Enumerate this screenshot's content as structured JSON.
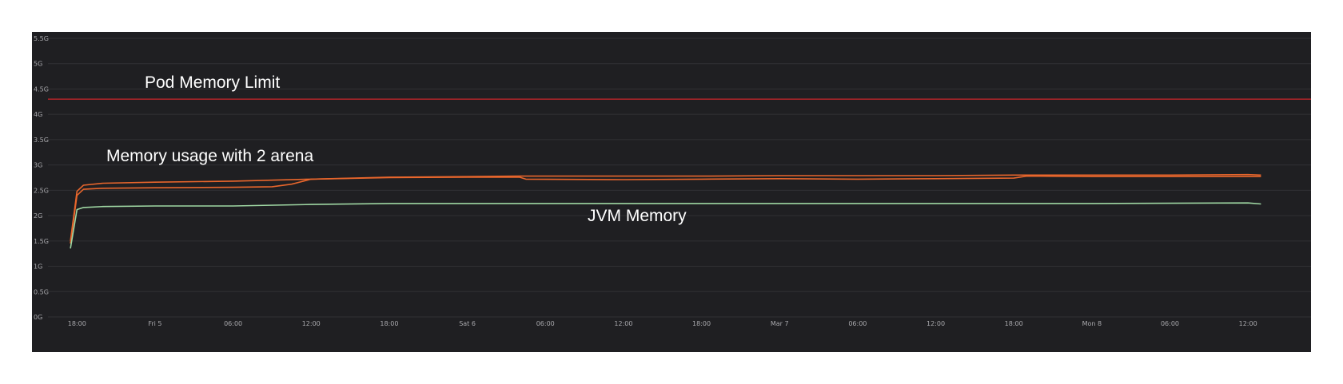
{
  "chart_data": {
    "type": "line",
    "title": "",
    "xlabel": "",
    "ylabel": "",
    "ylim": [
      0,
      5.5
    ],
    "y_unit": "G",
    "y_ticks": [
      {
        "value": 0,
        "label": "0G"
      },
      {
        "value": 0.5,
        "label": "0.5G"
      },
      {
        "value": 1,
        "label": "1G"
      },
      {
        "value": 1.5,
        "label": "1.5G"
      },
      {
        "value": 2,
        "label": "2G"
      },
      {
        "value": 2.5,
        "label": "2.5G"
      },
      {
        "value": 3,
        "label": "3G"
      },
      {
        "value": 3.5,
        "label": "3.5G"
      },
      {
        "value": 4,
        "label": "4G"
      },
      {
        "value": 4.5,
        "label": "4.5G"
      },
      {
        "value": 5,
        "label": "5G"
      },
      {
        "value": 5.5,
        "label": "5.5G"
      }
    ],
    "xlim": [
      "Thu 17:00",
      "Mon 15:00"
    ],
    "x_ticks": [
      {
        "t": "Thu 18:00",
        "label": "18:00"
      },
      {
        "t": "Fri 00:00",
        "label": "Fri 5"
      },
      {
        "t": "Fri 06:00",
        "label": "06:00"
      },
      {
        "t": "Fri 12:00",
        "label": "12:00"
      },
      {
        "t": "Fri 18:00",
        "label": "18:00"
      },
      {
        "t": "Sat 00:00",
        "label": "Sat 6"
      },
      {
        "t": "Sat 06:00",
        "label": "06:00"
      },
      {
        "t": "Sat 12:00",
        "label": "12:00"
      },
      {
        "t": "Sat 18:00",
        "label": "18:00"
      },
      {
        "t": "Sun 00:00",
        "label": "Mar 7"
      },
      {
        "t": "Sun 06:00",
        "label": "06:00"
      },
      {
        "t": "Sun 12:00",
        "label": "12:00"
      },
      {
        "t": "Sun 18:00",
        "label": "18:00"
      },
      {
        "t": "Mon 00:00",
        "label": "Mon 8"
      },
      {
        "t": "Mon 06:00",
        "label": "06:00"
      },
      {
        "t": "Mon 12:00",
        "label": "12:00"
      }
    ],
    "grid": true,
    "reference_lines": [
      {
        "label": "Pod Memory Limit",
        "value": 4.3,
        "color": "#c0262a"
      }
    ],
    "annotations": [
      {
        "text": "Pod Memory Limit"
      },
      {
        "text": "Memory usage with 2 arena"
      },
      {
        "text": "JVM Memory"
      }
    ],
    "series": [
      {
        "color": "#e8662c",
        "points": [
          [
            "Thu 17:30",
            1.5
          ],
          [
            "Thu 18:00",
            2.48
          ],
          [
            "Thu 18:30",
            2.6
          ],
          [
            "Thu 20:00",
            2.64
          ],
          [
            "Fri 00:00",
            2.66
          ],
          [
            "Fri 06:00",
            2.68
          ],
          [
            "Fri 12:00",
            2.72
          ],
          [
            "Fri 18:00",
            2.76
          ],
          [
            "Sat 00:00",
            2.77
          ],
          [
            "Sat 04:00",
            2.78
          ],
          [
            "Sat 12:00",
            2.78
          ],
          [
            "Sat 18:00",
            2.78
          ],
          [
            "Sun 00:00",
            2.79
          ],
          [
            "Sun 06:00",
            2.79
          ],
          [
            "Sun 12:00",
            2.79
          ],
          [
            "Sun 18:00",
            2.8
          ],
          [
            "Mon 00:00",
            2.8
          ],
          [
            "Mon 06:00",
            2.8
          ],
          [
            "Mon 12:00",
            2.81
          ],
          [
            "Mon 13:00",
            2.8
          ]
        ]
      },
      {
        "color": "#e8662c",
        "points": [
          [
            "Thu 17:30",
            1.45
          ],
          [
            "Thu 18:00",
            2.4
          ],
          [
            "Thu 18:30",
            2.52
          ],
          [
            "Thu 20:00",
            2.54
          ],
          [
            "Fri 00:00",
            2.55
          ],
          [
            "Fri 06:00",
            2.56
          ],
          [
            "Fri 09:00",
            2.57
          ],
          [
            "Fri 10:30",
            2.62
          ],
          [
            "Fri 12:00",
            2.72
          ],
          [
            "Fri 18:00",
            2.75
          ],
          [
            "Sat 00:00",
            2.76
          ],
          [
            "Sat 04:00",
            2.76
          ],
          [
            "Sat 04:30",
            2.72
          ],
          [
            "Sat 12:00",
            2.71
          ],
          [
            "Sat 18:00",
            2.72
          ],
          [
            "Sun 00:00",
            2.73
          ],
          [
            "Sun 06:00",
            2.72
          ],
          [
            "Sun 12:00",
            2.73
          ],
          [
            "Sun 18:00",
            2.74
          ],
          [
            "Sun 19:00",
            2.78
          ],
          [
            "Mon 00:00",
            2.77
          ],
          [
            "Mon 06:00",
            2.77
          ],
          [
            "Mon 13:00",
            2.77
          ]
        ]
      },
      {
        "color": "#9fd7a3",
        "points": [
          [
            "Thu 17:30",
            1.35
          ],
          [
            "Thu 18:00",
            2.12
          ],
          [
            "Thu 18:30",
            2.16
          ],
          [
            "Thu 20:00",
            2.18
          ],
          [
            "Fri 00:00",
            2.19
          ],
          [
            "Fri 06:00",
            2.19
          ],
          [
            "Fri 12:00",
            2.22
          ],
          [
            "Fri 18:00",
            2.24
          ],
          [
            "Sat 00:00",
            2.24
          ],
          [
            "Sat 12:00",
            2.24
          ],
          [
            "Sun 00:00",
            2.24
          ],
          [
            "Sun 12:00",
            2.24
          ],
          [
            "Mon 00:00",
            2.24
          ],
          [
            "Mon 12:00",
            2.25
          ],
          [
            "Mon 13:00",
            2.23
          ]
        ]
      }
    ]
  }
}
